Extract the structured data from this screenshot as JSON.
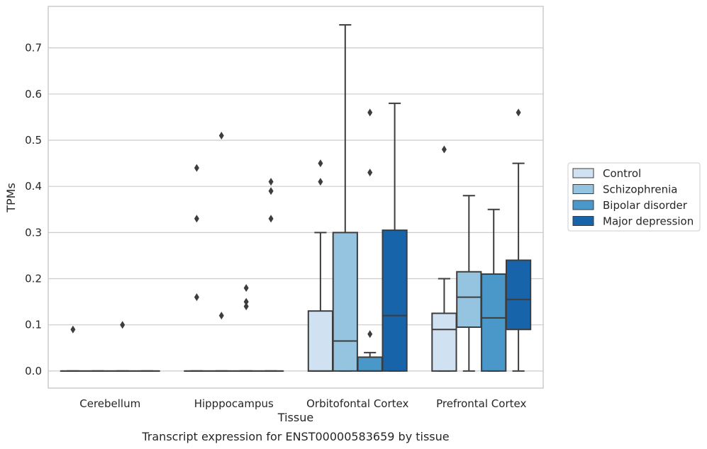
{
  "chart_data": {
    "type": "boxplot",
    "caption": "Transcript expression for ENST00000583659 by tissue",
    "xlabel": "Tissue",
    "ylabel": "TPMs",
    "ylim": [
      -0.037,
      0.79
    ],
    "yticks": [
      "0.0",
      "0.1",
      "0.2",
      "0.3",
      "0.4",
      "0.5",
      "0.6",
      "0.7"
    ],
    "grid": "horizontal",
    "legend_position": "right",
    "categories": [
      "Cerebellum",
      "Hipppocampus",
      "Orbitofontal Cortex",
      "Prefrontal Cortex"
    ],
    "series": [
      {
        "name": "Control",
        "color": "#d0e1f2",
        "boxes": [
          {
            "whislo": 0,
            "q1": 0,
            "med": 0,
            "q3": 0,
            "whishi": 0,
            "fliers": [
              0.09
            ]
          },
          {
            "whislo": 0,
            "q1": 0,
            "med": 0,
            "q3": 0,
            "whishi": 0,
            "fliers": [
              0.44,
              0.33,
              0.16
            ]
          },
          {
            "whislo": 0,
            "q1": 0,
            "med": 0,
            "q3": 0.13,
            "whishi": 0.3,
            "fliers": [
              0.45,
              0.41
            ]
          },
          {
            "whislo": 0,
            "q1": 0,
            "med": 0.09,
            "q3": 0.125,
            "whishi": 0.2,
            "fliers": [
              0.48
            ]
          }
        ]
      },
      {
        "name": "Schizophrenia",
        "color": "#94c4df",
        "boxes": [
          {
            "whislo": 0,
            "q1": 0,
            "med": 0,
            "q3": 0,
            "whishi": 0,
            "fliers": []
          },
          {
            "whislo": 0,
            "q1": 0,
            "med": 0,
            "q3": 0,
            "whishi": 0,
            "fliers": [
              0.51,
              0.12
            ]
          },
          {
            "whislo": 0,
            "q1": 0,
            "med": 0.065,
            "q3": 0.3,
            "whishi": 0.75,
            "fliers": []
          },
          {
            "whislo": 0,
            "q1": 0.095,
            "med": 0.16,
            "q3": 0.215,
            "whishi": 0.38,
            "fliers": []
          }
        ]
      },
      {
        "name": "Bipolar disorder",
        "color": "#4a98c9",
        "boxes": [
          {
            "whislo": 0,
            "q1": 0,
            "med": 0,
            "q3": 0,
            "whishi": 0,
            "fliers": [
              0.1
            ]
          },
          {
            "whislo": 0,
            "q1": 0,
            "med": 0,
            "q3": 0,
            "whishi": 0,
            "fliers": [
              0.18,
              0.15,
              0.14
            ]
          },
          {
            "whislo": 0,
            "q1": 0,
            "med": 0,
            "q3": 0.03,
            "whishi": 0.04,
            "fliers": [
              0.56,
              0.43,
              0.08
            ]
          },
          {
            "whislo": 0,
            "q1": 0,
            "med": 0.115,
            "q3": 0.21,
            "whishi": 0.35,
            "fliers": []
          }
        ]
      },
      {
        "name": "Major depression",
        "color": "#1764ab",
        "boxes": [
          {
            "whislo": 0,
            "q1": 0,
            "med": 0,
            "q3": 0,
            "whishi": 0,
            "fliers": []
          },
          {
            "whislo": 0,
            "q1": 0,
            "med": 0,
            "q3": 0,
            "whishi": 0,
            "fliers": [
              0.41,
              0.39,
              0.33
            ]
          },
          {
            "whislo": 0,
            "q1": 0,
            "med": 0.12,
            "q3": 0.305,
            "whishi": 0.58,
            "fliers": []
          },
          {
            "whislo": 0,
            "q1": 0.09,
            "med": 0.155,
            "q3": 0.24,
            "whishi": 0.45,
            "fliers": [
              0.56
            ]
          }
        ]
      }
    ]
  }
}
